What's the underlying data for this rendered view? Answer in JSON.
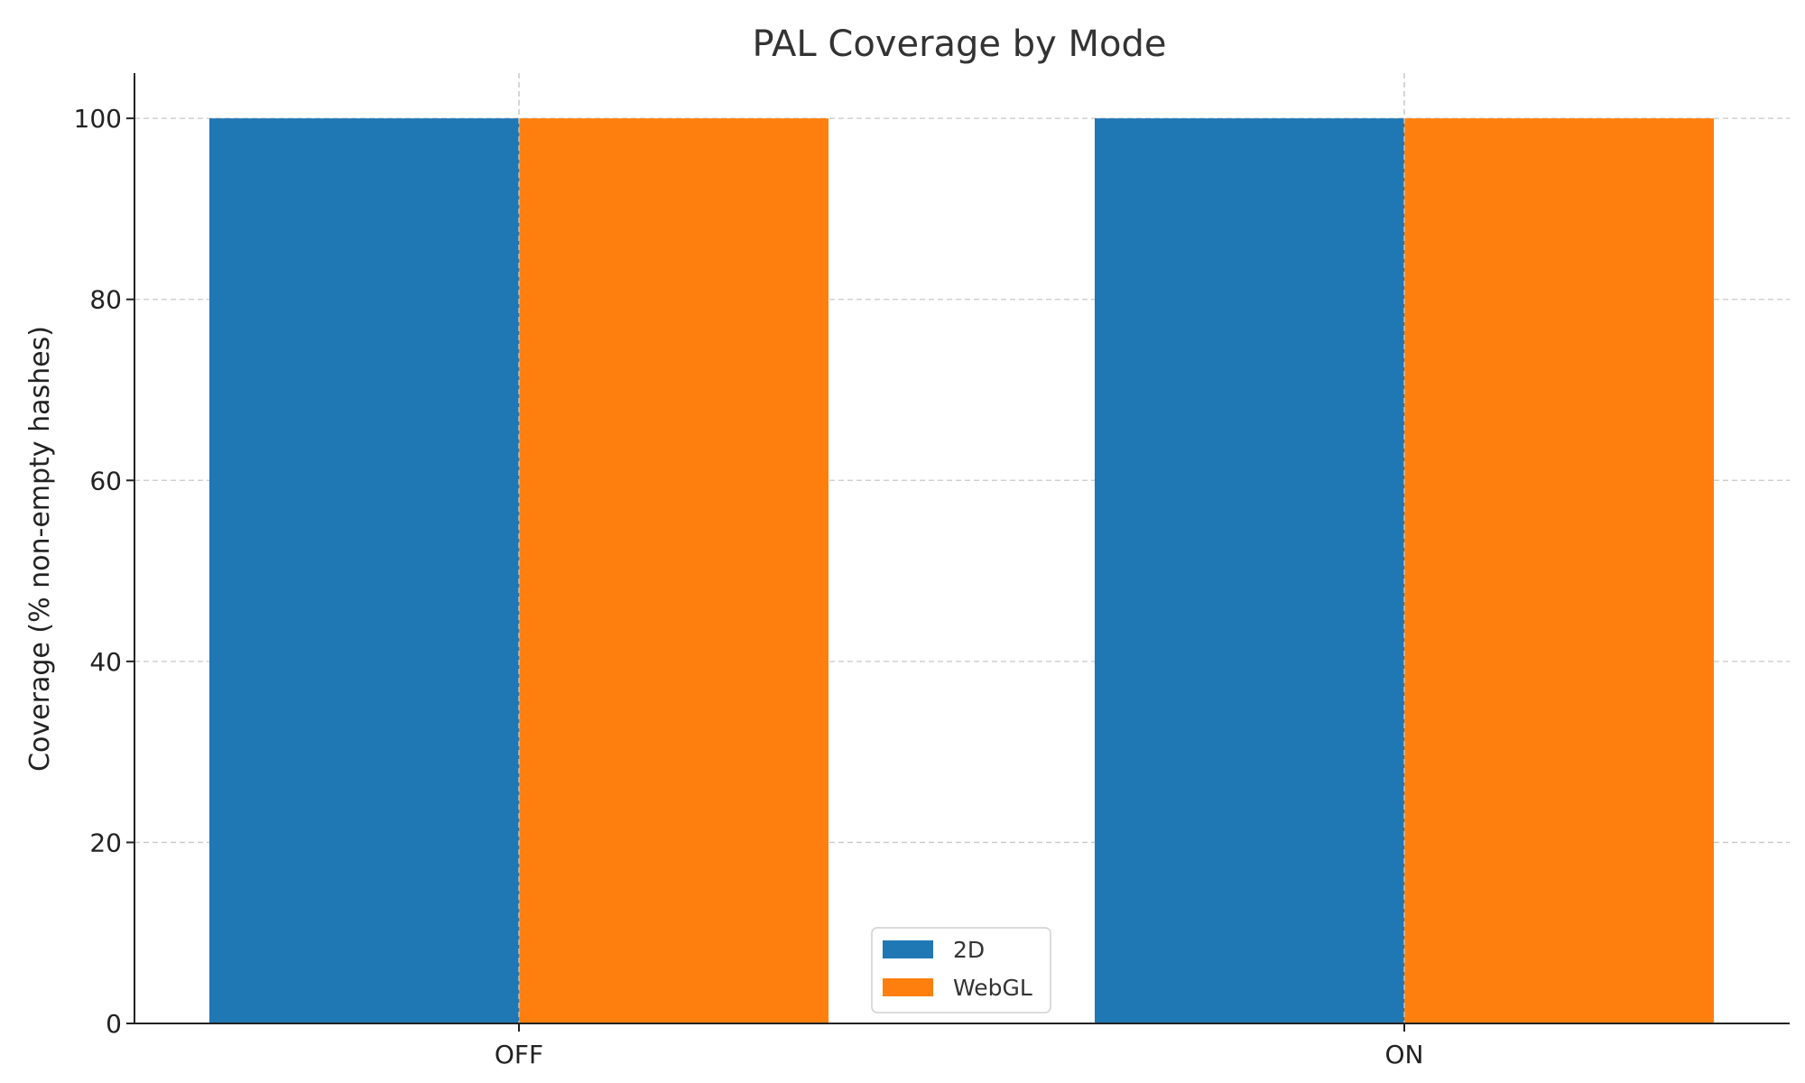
{
  "chart_data": {
    "type": "bar",
    "title": "PAL Coverage by Mode",
    "xlabel": "",
    "ylabel": "Coverage (% non-empty hashes)",
    "categories": [
      "OFF",
      "ON"
    ],
    "series": [
      {
        "name": "2D",
        "values": [
          100,
          100
        ],
        "color": "#1f77b4"
      },
      {
        "name": "WebGL",
        "values": [
          100,
          100
        ],
        "color": "#ff7f0e"
      }
    ],
    "ylim": [
      0,
      105
    ],
    "yticks": [
      0,
      20,
      40,
      60,
      80,
      100
    ],
    "grid": true,
    "legend_position": "lower-center"
  }
}
